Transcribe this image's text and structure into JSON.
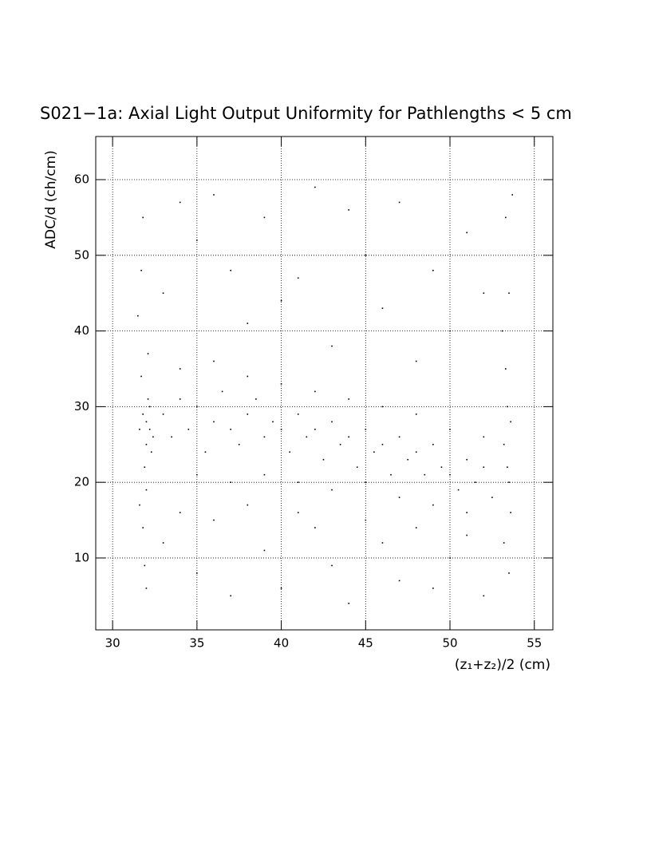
{
  "chart_data": {
    "type": "scatter",
    "title": "S021−1a: Axial Light Output Uniformity for Pathlengths < 5 cm",
    "x_label": "(z₁+z₂)/2 (cm)",
    "y_label": "ADC/d (ch/cm)",
    "xlim": [
      29,
      56.1
    ],
    "ylim": [
      0.5,
      65.7
    ],
    "xticks": [
      30,
      35,
      40,
      45,
      50,
      55
    ],
    "yticks": [
      10,
      20,
      30,
      40,
      50,
      60
    ],
    "grid": true,
    "color": "#000000",
    "x": [
      31.6,
      31.8,
      32.0,
      32.1,
      31.9,
      32.2,
      31.7,
      32.0,
      31.8,
      32.1,
      31.5,
      32.3,
      31.9,
      32.0,
      31.7,
      32.2,
      31.6,
      32.4,
      31.8,
      32.0,
      33,
      33.5,
      34,
      34.5,
      35,
      35.5,
      36,
      36.5,
      37,
      37.5,
      38,
      38.5,
      39,
      39.5,
      40,
      40.5,
      41,
      41.5,
      42,
      42.5,
      43,
      43.5,
      44,
      44.5,
      45,
      45.5,
      46,
      46.5,
      47,
      47.5,
      48,
      48.5,
      49,
      49.5,
      50,
      50.5,
      51,
      51.5,
      52,
      52.5,
      34,
      36,
      38,
      40,
      42,
      44,
      46,
      48,
      50,
      52,
      35,
      37,
      39,
      41,
      43,
      45,
      47,
      49,
      51,
      53.2,
      53.4,
      53.5,
      53.3,
      53.6,
      53.1,
      53.4,
      53.5,
      53.2,
      53.6,
      53.3,
      53.5,
      53.7,
      33,
      35,
      36,
      38,
      39,
      41,
      42,
      43,
      45,
      46,
      47,
      48,
      49,
      50,
      51,
      52,
      44,
      40,
      37,
      34,
      33,
      35,
      36,
      37,
      39,
      40,
      42,
      43,
      44,
      46,
      47,
      48,
      49,
      50,
      51,
      52,
      38,
      41,
      45,
      34
    ],
    "y": [
      27,
      29,
      25,
      31,
      22,
      27,
      34,
      19,
      14,
      37,
      42,
      24,
      9,
      28,
      48,
      30,
      17,
      26,
      55,
      6,
      29,
      26,
      31,
      27,
      30,
      24,
      28,
      32,
      27,
      25,
      29,
      31,
      26,
      28,
      27,
      24,
      29,
      26,
      27,
      23,
      28,
      25,
      26,
      22,
      27,
      24,
      25,
      21,
      26,
      23,
      24,
      21,
      25,
      22,
      21,
      19,
      23,
      20,
      22,
      18,
      35,
      36,
      34,
      33,
      32,
      31,
      30,
      29,
      27,
      26,
      21,
      20,
      21,
      20,
      19,
      20,
      18,
      17,
      16,
      25,
      30,
      20,
      35,
      16,
      40,
      22,
      45,
      12,
      28,
      55,
      8,
      58,
      45,
      52,
      58,
      41,
      55,
      47,
      59,
      38,
      50,
      43,
      57,
      36,
      48,
      40,
      53,
      45,
      56,
      44,
      48,
      57,
      12,
      8,
      15,
      5,
      11,
      6,
      14,
      9,
      4,
      12,
      7,
      14,
      6,
      10,
      13,
      5,
      17,
      16,
      15,
      16
    ]
  }
}
